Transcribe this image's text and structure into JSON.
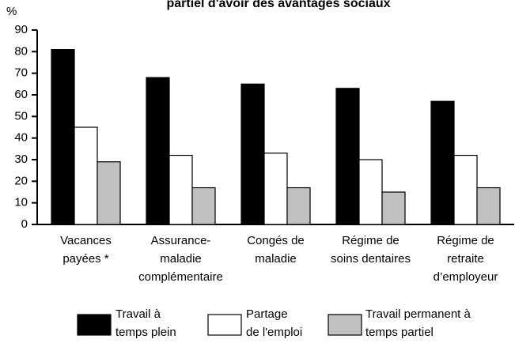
{
  "chart_data": {
    "type": "bar",
    "title": "partiel d'avoir des avantages sociaux",
    "y_label": "%",
    "categories": [
      [
        "Vacances",
        "payées *"
      ],
      [
        "Assurance-",
        "maladie",
        "complémentaire"
      ],
      [
        "Congés de",
        "maladie"
      ],
      [
        "Régime de",
        "soins dentaires"
      ],
      [
        "Régime de",
        "retraite",
        "d’employeur"
      ]
    ],
    "series": [
      {
        "name": [
          "Travail à",
          "temps plein"
        ],
        "color": "#000000",
        "values": [
          81,
          68,
          65,
          63,
          57
        ]
      },
      {
        "name": [
          "Partage",
          "de l'emploi"
        ],
        "color": "#ffffff",
        "values": [
          45,
          32,
          33,
          30,
          32
        ]
      },
      {
        "name": [
          "Travail permanent à",
          "temps partiel"
        ],
        "color": "#c0c0c0",
        "values": [
          29,
          17,
          17,
          15,
          17
        ]
      }
    ],
    "ylim": [
      0,
      90
    ],
    "yticks": [
      0,
      10,
      20,
      30,
      40,
      50,
      60,
      70,
      80,
      90
    ],
    "grid": false
  }
}
